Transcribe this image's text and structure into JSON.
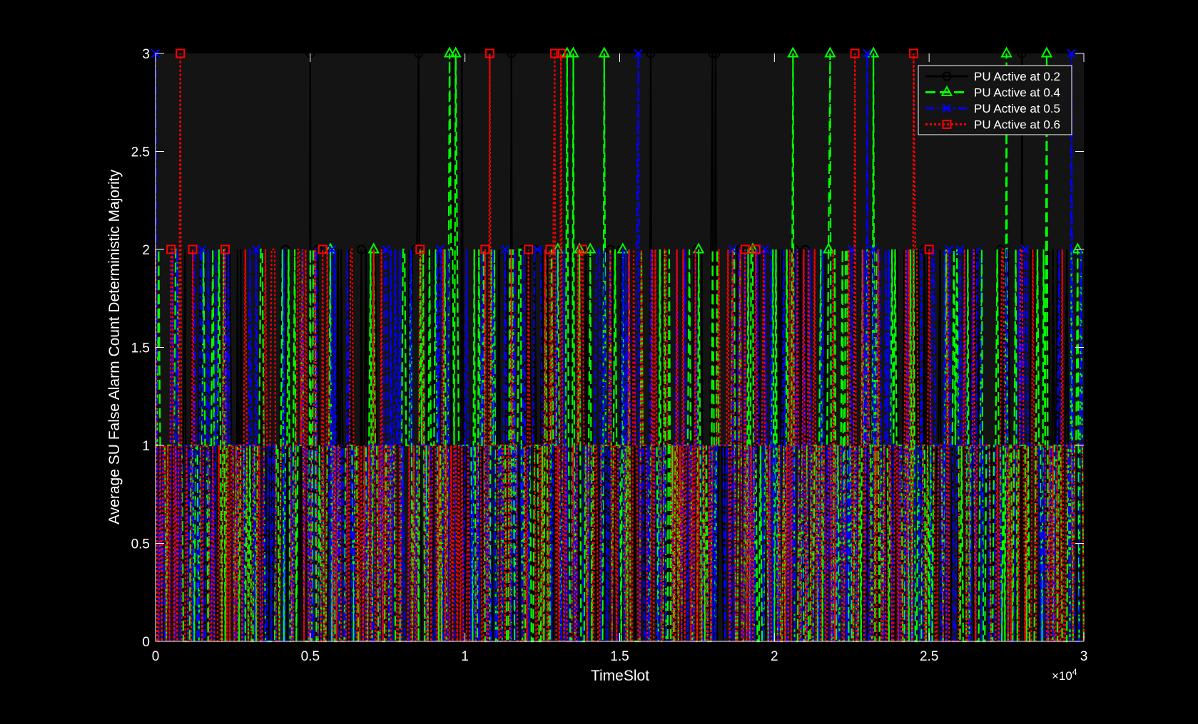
{
  "chart_data": {
    "type": "line",
    "title": "",
    "xlabel": "TimeSlot",
    "ylabel": "Average SU False Alarm Count Deterministic Majority",
    "x_exponent_label": "×10",
    "x_exponent_power": "4",
    "xlim": [
      0,
      30000
    ],
    "ylim": [
      0,
      3
    ],
    "x_ticks": [
      0,
      5000,
      10000,
      15000,
      20000,
      25000,
      30000
    ],
    "x_tick_labels": [
      "0",
      "0.5",
      "1",
      "1.5",
      "2",
      "2.5",
      "3"
    ],
    "y_ticks": [
      0,
      0.5,
      1,
      1.5,
      2,
      2.5,
      3
    ],
    "y_tick_labels": [
      "0",
      "0.5",
      "1",
      "1.5",
      "2",
      "2.5",
      "3"
    ],
    "grid": false,
    "legend_position": "top-right",
    "background_color": "#000000",
    "axes_color": "#141414",
    "value_levels": [
      0,
      1,
      2,
      3
    ],
    "series": [
      {
        "name": "PU Active at 0.2",
        "color": "#000000",
        "line_style": "solid",
        "marker": "circle",
        "peaks_3": [
          0,
          5000,
          8500,
          9600,
          9900,
          11500,
          16000,
          18000,
          18100,
          28000
        ]
      },
      {
        "name": "PU Active at 0.4",
        "color": "#00ff00",
        "line_style": "dashed",
        "marker": "triangle",
        "peaks_3": [
          9500,
          9700,
          13300,
          13500,
          14500,
          20600,
          21800,
          23200,
          27500,
          28800
        ]
      },
      {
        "name": "PU Active at 0.5",
        "color": "#0000ff",
        "line_style": "dashdot",
        "marker": "x",
        "peaks_3": [
          0,
          15600,
          23000,
          29600
        ]
      },
      {
        "name": "PU Active at 0.6",
        "color": "#ff0000",
        "line_style": "dotted",
        "marker": "square",
        "peaks_3": [
          800,
          10800,
          12900,
          13100,
          22600,
          24500
        ]
      }
    ]
  }
}
